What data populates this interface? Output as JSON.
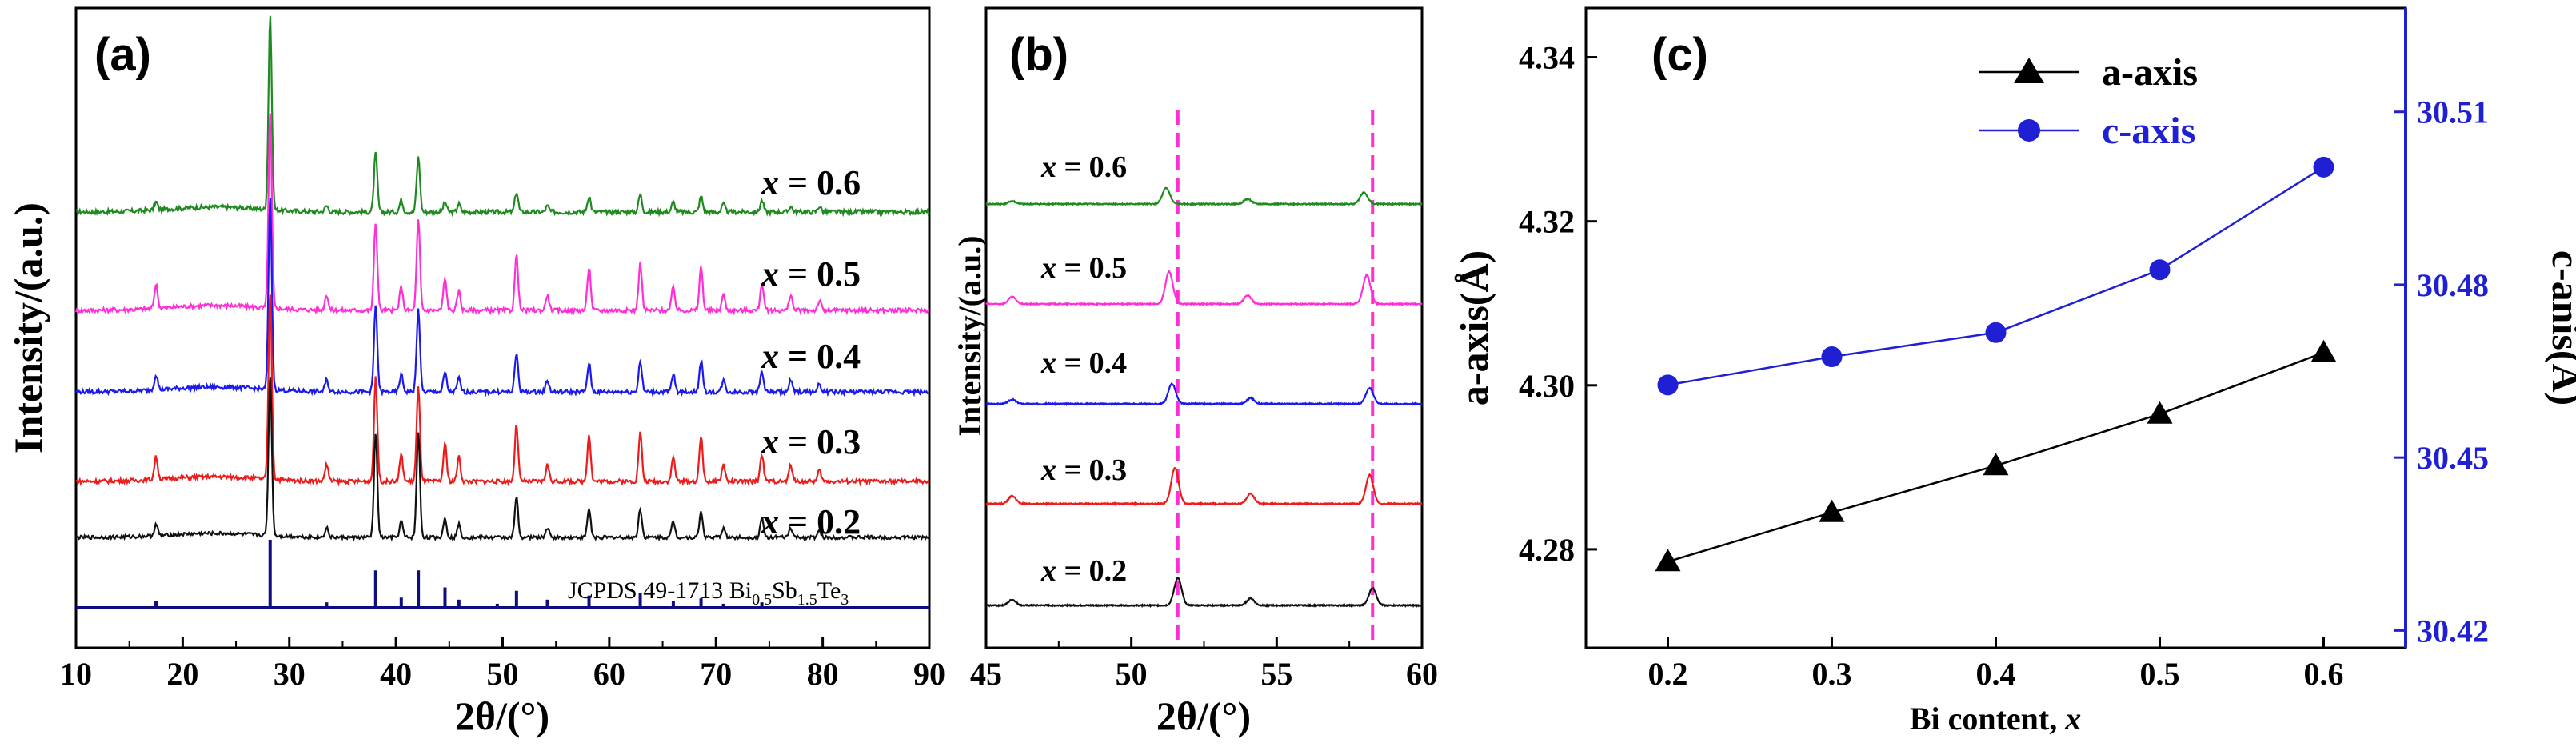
{
  "chart_data": [
    {
      "panel": "(a)",
      "type": "line",
      "xlabel": "2θ/(°)",
      "ylabel": "Intensity/(a.u.)",
      "xlim": [
        10,
        90
      ],
      "xticks": [
        10,
        20,
        30,
        40,
        50,
        60,
        70,
        80,
        90
      ],
      "series": [
        {
          "name": "x = 0.6",
          "color": "#1f8a1f",
          "peaks": [
            [
              17.5,
              4
            ],
            [
              28.2,
              100
            ],
            [
              33.5,
              3
            ],
            [
              38.1,
              30
            ],
            [
              40.5,
              6
            ],
            [
              42.1,
              28
            ],
            [
              44.6,
              5
            ],
            [
              45.9,
              4
            ],
            [
              51.3,
              10
            ],
            [
              54.2,
              3
            ],
            [
              58.1,
              8
            ],
            [
              62.9,
              9
            ],
            [
              66.0,
              5
            ],
            [
              68.6,
              8
            ],
            [
              70.7,
              4
            ],
            [
              74.3,
              6
            ],
            [
              77.0,
              3
            ],
            [
              79.7,
              3
            ]
          ]
        },
        {
          "name": "x = 0.5",
          "color": "#ff2fd8",
          "peaks": [
            [
              17.5,
              12
            ],
            [
              28.2,
              100
            ],
            [
              33.5,
              8
            ],
            [
              38.1,
              45
            ],
            [
              40.5,
              12
            ],
            [
              42.1,
              46
            ],
            [
              44.6,
              16
            ],
            [
              45.9,
              10
            ],
            [
              51.3,
              28
            ],
            [
              54.2,
              8
            ],
            [
              58.1,
              22
            ],
            [
              62.9,
              24
            ],
            [
              66.0,
              12
            ],
            [
              68.6,
              22
            ],
            [
              70.7,
              8
            ],
            [
              74.3,
              14
            ],
            [
              77.0,
              8
            ],
            [
              79.7,
              5
            ]
          ]
        },
        {
          "name": "x = 0.4",
          "color": "#1a1aee",
          "peaks": [
            [
              17.5,
              8
            ],
            [
              28.2,
              100
            ],
            [
              33.5,
              6
            ],
            [
              38.1,
              45
            ],
            [
              40.5,
              9
            ],
            [
              42.1,
              43
            ],
            [
              44.6,
              10
            ],
            [
              45.9,
              7
            ],
            [
              51.3,
              20
            ],
            [
              54.2,
              6
            ],
            [
              58.1,
              15
            ],
            [
              62.9,
              16
            ],
            [
              66.0,
              9
            ],
            [
              68.6,
              16
            ],
            [
              70.7,
              6
            ],
            [
              74.3,
              11
            ],
            [
              77.0,
              6
            ],
            [
              79.7,
              4
            ]
          ]
        },
        {
          "name": "x = 0.3",
          "color": "#ee1b1b",
          "peaks": [
            [
              17.5,
              12
            ],
            [
              28.2,
              100
            ],
            [
              33.5,
              9
            ],
            [
              38.1,
              55
            ],
            [
              40.5,
              14
            ],
            [
              42.1,
              50
            ],
            [
              44.6,
              20
            ],
            [
              45.9,
              13
            ],
            [
              51.3,
              30
            ],
            [
              54.2,
              9
            ],
            [
              58.1,
              25
            ],
            [
              62.9,
              26
            ],
            [
              66.0,
              13
            ],
            [
              68.6,
              24
            ],
            [
              70.7,
              9
            ],
            [
              74.3,
              15
            ],
            [
              77.0,
              9
            ],
            [
              79.7,
              6
            ]
          ]
        },
        {
          "name": "x = 0.2",
          "color": "#111111",
          "peaks": [
            [
              17.5,
              7
            ],
            [
              28.2,
              100
            ],
            [
              33.5,
              6
            ],
            [
              38.1,
              65
            ],
            [
              40.5,
              10
            ],
            [
              42.1,
              65
            ],
            [
              44.6,
              12
            ],
            [
              45.9,
              8
            ],
            [
              51.3,
              25
            ],
            [
              54.2,
              6
            ],
            [
              58.1,
              18
            ],
            [
              62.9,
              18
            ],
            [
              66.0,
              10
            ],
            [
              68.6,
              16
            ],
            [
              70.7,
              6
            ],
            [
              74.3,
              12
            ],
            [
              77.0,
              6
            ],
            [
              79.7,
              4
            ]
          ]
        }
      ],
      "reference": {
        "label_main": "JCPDS 49-1713 Bi",
        "label_sub1": "0.5",
        "label_mid": "Sb",
        "label_sub2": "1.5",
        "label_end": "Te",
        "label_sub3": "3",
        "color": "#0d0d80",
        "sticks": [
          [
            17.5,
            10
          ],
          [
            28.2,
            100
          ],
          [
            33.5,
            8
          ],
          [
            38.1,
            55
          ],
          [
            40.5,
            15
          ],
          [
            42.1,
            55
          ],
          [
            44.6,
            30
          ],
          [
            45.9,
            12
          ],
          [
            49.5,
            6
          ],
          [
            51.3,
            25
          ],
          [
            54.2,
            12
          ],
          [
            58.1,
            18
          ],
          [
            62.9,
            22
          ],
          [
            66.0,
            10
          ],
          [
            68.6,
            14
          ],
          [
            70.7,
            6
          ],
          [
            74.3,
            8
          ]
        ]
      }
    },
    {
      "panel": "(b)",
      "type": "line",
      "xlabel": "2θ/(°)",
      "ylabel": "Intensity/(a.u.)",
      "xlim": [
        45,
        60
      ],
      "xticks": [
        45,
        50,
        55,
        60
      ],
      "dashed_lines_x": [
        51.6,
        58.3
      ],
      "dashed_color": "#ff2fd8",
      "series": [
        {
          "name": "x = 0.6",
          "color": "#1f8a1f",
          "peaks": [
            [
              45.9,
              4
            ],
            [
              51.2,
              22
            ],
            [
              54.0,
              7
            ],
            [
              58.0,
              16
            ]
          ]
        },
        {
          "name": "x = 0.5",
          "color": "#ff2fd8",
          "peaks": [
            [
              45.9,
              10
            ],
            [
              51.3,
              45
            ],
            [
              54.0,
              12
            ],
            [
              58.1,
              40
            ]
          ]
        },
        {
          "name": "x = 0.4",
          "color": "#1a1aee",
          "peaks": [
            [
              45.9,
              6
            ],
            [
              51.4,
              28
            ],
            [
              54.1,
              8
            ],
            [
              58.2,
              22
            ]
          ]
        },
        {
          "name": "x = 0.3",
          "color": "#ee1b1b",
          "peaks": [
            [
              45.9,
              11
            ],
            [
              51.5,
              50
            ],
            [
              54.1,
              14
            ],
            [
              58.2,
              40
            ]
          ]
        },
        {
          "name": "x = 0.2",
          "color": "#111111",
          "peaks": [
            [
              45.9,
              8
            ],
            [
              51.6,
              38
            ],
            [
              54.1,
              10
            ],
            [
              58.3,
              24
            ]
          ]
        }
      ]
    },
    {
      "panel": "(c)",
      "type": "line",
      "xlabel_main": "Bi content, ",
      "xlabel_var": "x",
      "ylabel_left": "a-axis(Å)",
      "ylabel_right": "c-anis(Å)",
      "x": [
        0.2,
        0.3,
        0.4,
        0.5,
        0.6
      ],
      "xlim": [
        0.15,
        0.65
      ],
      "xticks": [
        "0.2",
        "0.3",
        "0.4",
        "0.5",
        "0.6"
      ],
      "ylim_left": [
        4.268,
        4.346
      ],
      "yticks_left": [
        "4.28",
        "4.30",
        "4.32",
        "4.34"
      ],
      "ylim_right": [
        30.417,
        30.528
      ],
      "yticks_right": [
        "30.42",
        "30.45",
        "30.48",
        "30.51"
      ],
      "series": [
        {
          "name": "a-axis",
          "axis": "left",
          "marker": "triangle",
          "color": "#000000",
          "values": [
            4.2785,
            4.2845,
            4.2902,
            4.2965,
            4.304
          ]
        },
        {
          "name": "c-axis",
          "axis": "right",
          "marker": "circle",
          "color": "#1f1fd4",
          "values": [
            30.4626,
            30.4675,
            30.4717,
            30.4826,
            30.5004
          ]
        }
      ]
    }
  ]
}
